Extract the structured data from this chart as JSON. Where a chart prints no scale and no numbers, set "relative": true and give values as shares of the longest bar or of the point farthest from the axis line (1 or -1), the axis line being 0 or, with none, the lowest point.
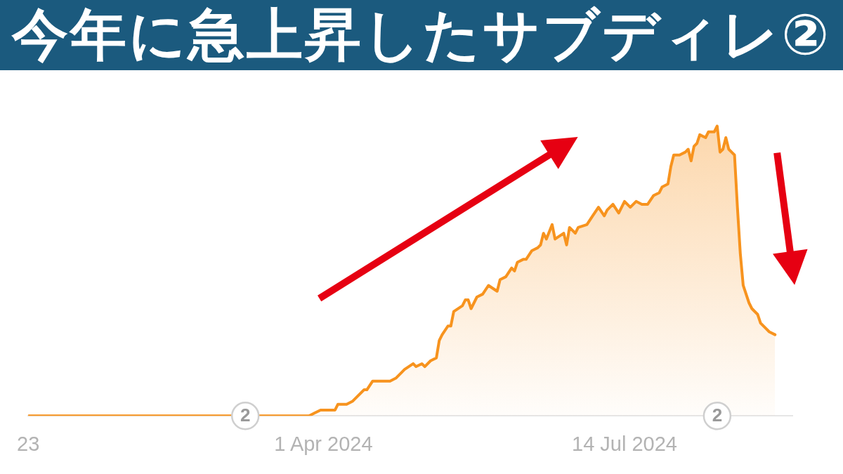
{
  "chart_data": {
    "type": "area",
    "title": "今年に急上昇したサブディレ②",
    "x": [
      "2023-12-21",
      "2024-03-27",
      "2024-03-29",
      "2024-03-31",
      "2024-04-03",
      "2024-04-05",
      "2024-04-06",
      "2024-04-09",
      "2024-04-11",
      "2024-04-13",
      "2024-04-15",
      "2024-04-16",
      "2024-04-18",
      "2024-04-20",
      "2024-04-22",
      "2024-04-24",
      "2024-04-26",
      "2024-04-28",
      "2024-04-29",
      "2024-05-02",
      "2024-05-03",
      "2024-05-05",
      "2024-05-06",
      "2024-05-08",
      "2024-05-10",
      "2024-05-11",
      "2024-05-12",
      "2024-05-14",
      "2024-05-15",
      "2024-05-16",
      "2024-05-19",
      "2024-05-20",
      "2024-05-21",
      "2024-05-22",
      "2024-05-24",
      "2024-05-26",
      "2024-05-28",
      "2024-05-31",
      "2024-06-01",
      "2024-06-03",
      "2024-06-05",
      "2024-06-06",
      "2024-06-07",
      "2024-06-09",
      "2024-06-10",
      "2024-06-12",
      "2024-06-14",
      "2024-06-15",
      "2024-06-16",
      "2024-06-17",
      "2024-06-19",
      "2024-06-20",
      "2024-06-23",
      "2024-06-24",
      "2024-06-25",
      "2024-06-27",
      "2024-06-28",
      "2024-07-01",
      "2024-07-03",
      "2024-07-05",
      "2024-07-07",
      "2024-07-08",
      "2024-07-10",
      "2024-07-12",
      "2024-07-14",
      "2024-07-16",
      "2024-07-18",
      "2024-07-20",
      "2024-07-22",
      "2024-07-24",
      "2024-07-26",
      "2024-07-27",
      "2024-07-29",
      "2024-07-30",
      "2024-07-31",
      "2024-08-02",
      "2024-08-04",
      "2024-08-05",
      "2024-08-06",
      "2024-08-07",
      "2024-08-08",
      "2024-08-09",
      "2024-08-11",
      "2024-08-12",
      "2024-08-13",
      "2024-08-14",
      "2024-08-15",
      "2024-08-16",
      "2024-08-17",
      "2024-08-18",
      "2024-08-19",
      "2024-08-20",
      "2024-08-21",
      "2024-08-22",
      "2024-08-23",
      "2024-08-24",
      "2024-08-26",
      "2024-08-27",
      "2024-08-29",
      "2024-08-30",
      "2024-09-01",
      "2024-09-02",
      "2024-09-04"
    ],
    "values": [
      0,
      0,
      0.01,
      0.02,
      0.02,
      0.02,
      0.04,
      0.04,
      0.05,
      0.07,
      0.09,
      0.09,
      0.12,
      0.12,
      0.12,
      0.12,
      0.13,
      0.15,
      0.16,
      0.18,
      0.17,
      0.18,
      0.17,
      0.19,
      0.2,
      0.26,
      0.28,
      0.31,
      0.31,
      0.36,
      0.38,
      0.4,
      0.4,
      0.37,
      0.41,
      0.42,
      0.45,
      0.43,
      0.47,
      0.48,
      0.51,
      0.5,
      0.53,
      0.54,
      0.54,
      0.57,
      0.58,
      0.59,
      0.63,
      0.61,
      0.66,
      0.61,
      0.63,
      0.59,
      0.65,
      0.63,
      0.65,
      0.66,
      0.69,
      0.72,
      0.69,
      0.71,
      0.73,
      0.7,
      0.74,
      0.72,
      0.74,
      0.73,
      0.73,
      0.76,
      0.77,
      0.79,
      0.8,
      0.86,
      0.9,
      0.9,
      0.91,
      0.92,
      0.88,
      0.93,
      0.94,
      0.97,
      0.96,
      0.98,
      0.98,
      0.98,
      1,
      0.91,
      0.92,
      0.96,
      0.92,
      0.91,
      0.9,
      0.72,
      0.56,
      0.45,
      0.39,
      0.37,
      0.35,
      0.32,
      0.3,
      0.29,
      0.28
    ],
    "color": "#f7931e",
    "relative": true,
    "xlim": [
      "2023-12-21",
      "2024-09-10"
    ],
    "xticks": [
      {
        "value": "2023-12-21",
        "label": "23"
      },
      {
        "value": "2024-04-01",
        "label": "1 Apr 2024"
      },
      {
        "value": "2024-07-14",
        "label": "14 Jul 2024"
      }
    ],
    "annotations": [
      {
        "text": "2",
        "x": "2024-03-05",
        "y": 0
      },
      {
        "text": "2",
        "x": "2024-08-15",
        "y": 0
      }
    ]
  }
}
